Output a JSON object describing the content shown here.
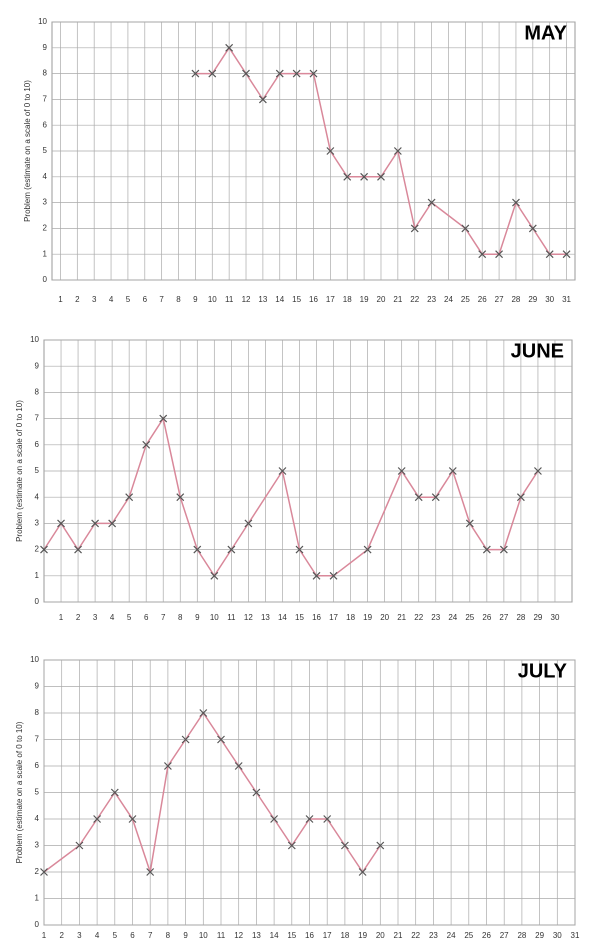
{
  "chart_data": [
    {
      "type": "line",
      "title": "MAY",
      "y_label": "Problem (estimate on a scale of 0 to 10)",
      "x": [
        9,
        10,
        11,
        12,
        13,
        14,
        15,
        16,
        17,
        18,
        19,
        20,
        21,
        22,
        23,
        25,
        26,
        27,
        28,
        29,
        30,
        31
      ],
      "values": [
        8,
        8,
        9,
        8,
        7,
        8,
        8,
        8,
        5,
        4,
        4,
        4,
        5,
        2,
        3,
        2,
        1,
        1,
        3,
        2,
        1,
        1
      ],
      "color": "#d9889a",
      "xlim": [
        0.5,
        31.5
      ],
      "ylim": [
        0,
        10
      ],
      "xticks": [
        1,
        2,
        3,
        4,
        5,
        6,
        7,
        8,
        9,
        10,
        11,
        12,
        13,
        14,
        15,
        16,
        17,
        18,
        19,
        20,
        21,
        22,
        23,
        24,
        25,
        26,
        27,
        28,
        29,
        30,
        31
      ],
      "yticks": [
        0,
        1,
        2,
        3,
        4,
        5,
        6,
        7,
        8,
        9,
        10
      ],
      "grid": true
    },
    {
      "type": "line",
      "title": "JUNE",
      "y_label": "Problem (estimate on a scale of 0 to 10)",
      "x": [
        0,
        1,
        2,
        3,
        4,
        5,
        6,
        7,
        8,
        9,
        10,
        11,
        12,
        14,
        15,
        16,
        17,
        19,
        21,
        22,
        23,
        24,
        25,
        26,
        27,
        28,
        29
      ],
      "values": [
        2,
        3,
        2,
        3,
        3,
        4,
        6,
        7,
        4,
        2,
        1,
        2,
        3,
        5,
        2,
        1,
        1,
        2,
        5,
        4,
        4,
        5,
        3,
        2,
        2,
        4,
        5
      ],
      "color": "#d9889a",
      "xlim": [
        0,
        31
      ],
      "ylim": [
        0,
        10
      ],
      "xticks": [
        1,
        2,
        3,
        4,
        5,
        6,
        7,
        8,
        9,
        10,
        11,
        12,
        13,
        14,
        15,
        16,
        17,
        18,
        19,
        20,
        21,
        22,
        23,
        24,
        25,
        26,
        27,
        28,
        29,
        30
      ],
      "yticks": [
        0,
        1,
        2,
        3,
        4,
        5,
        6,
        7,
        8,
        9,
        10
      ],
      "grid": true
    },
    {
      "type": "line",
      "title": "JULY",
      "y_label": "Problem (estimate on a scale of 0 to 10)",
      "x": [
        1,
        3,
        4,
        5,
        6,
        7,
        8,
        9,
        10,
        11,
        12,
        13,
        14,
        15,
        16,
        17,
        18,
        19,
        20
      ],
      "values": [
        2,
        3,
        4,
        5,
        4,
        2,
        6,
        7,
        8,
        7,
        6,
        5,
        4,
        3,
        4,
        4,
        3,
        2,
        3
      ],
      "color": "#d9889a",
      "xlim": [
        1,
        31
      ],
      "ylim": [
        0,
        10
      ],
      "xticks": [
        1,
        2,
        3,
        4,
        5,
        6,
        7,
        8,
        9,
        10,
        11,
        12,
        13,
        14,
        15,
        16,
        17,
        18,
        19,
        20,
        21,
        22,
        23,
        24,
        25,
        26,
        27,
        28,
        29,
        30,
        31
      ],
      "yticks": [
        0,
        1,
        2,
        3,
        4,
        5,
        6,
        7,
        8,
        9,
        10
      ],
      "grid": true
    }
  ]
}
